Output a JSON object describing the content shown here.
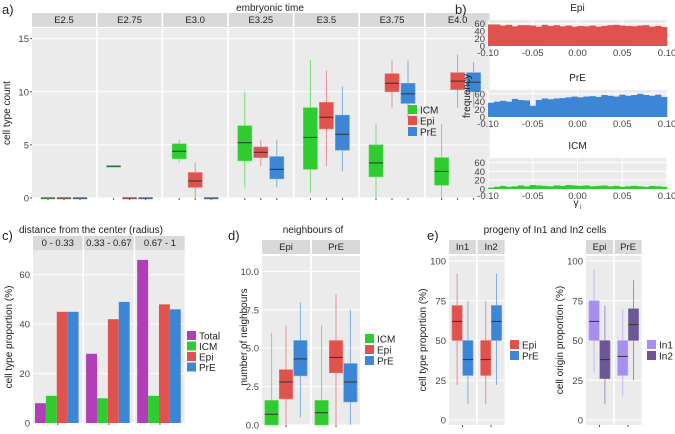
{
  "colors": {
    "icm": "#2ecc2e",
    "epi": "#e0524d",
    "pre": "#3d86d6",
    "total": "#b03eb6",
    "in1": "#a98ef2",
    "in2": "#6b5696",
    "panel": "#ebebeb",
    "strip": "#d9d9d9",
    "grid": "#ffffff"
  },
  "chart_data": [
    {
      "id": "a",
      "type": "boxplot",
      "panel_label": "a)",
      "title": "embryonic time",
      "ylabel": "cell type count",
      "ylim": [
        0,
        16
      ],
      "yticks": [
        0,
        5,
        10,
        15
      ],
      "facets": [
        "E2.5",
        "E2.75",
        "E3.0",
        "E3.25",
        "E3.5",
        "E3.75",
        "E4.0"
      ],
      "legend": [
        "ICM",
        "Epi",
        "PrE"
      ],
      "series": {
        "ICM": [
          [
            0,
            0,
            0,
            0,
            0
          ],
          [
            3,
            3,
            3,
            3,
            3
          ],
          [
            3.3,
            3.7,
            4.4,
            5.1,
            5.5
          ],
          [
            1,
            3.5,
            5.2,
            6.8,
            10
          ],
          [
            0.5,
            2.7,
            5.7,
            8.5,
            13
          ],
          [
            0,
            2,
            3.3,
            5,
            7
          ],
          [
            0,
            1.2,
            2.5,
            3.8,
            7
          ]
        ],
        "Epi": [
          [
            0,
            0,
            0,
            0,
            0
          ],
          [
            0,
            0,
            0,
            0,
            0
          ],
          [
            0,
            1,
            1.6,
            2.4,
            3.3
          ],
          [
            3,
            3.8,
            4.3,
            4.8,
            5.5
          ],
          [
            3,
            6.5,
            7.6,
            9,
            12
          ],
          [
            8.5,
            10,
            10.8,
            11.7,
            13
          ],
          [
            8.5,
            10.2,
            11,
            11.8,
            13.5
          ]
        ],
        "PrE": [
          [
            0,
            0,
            0,
            0,
            0
          ],
          [
            0,
            0,
            0,
            0,
            0
          ],
          [
            0,
            0,
            0,
            0,
            0
          ],
          [
            1,
            1.8,
            2.7,
            3.9,
            5.5
          ],
          [
            2.5,
            4.5,
            6,
            7.8,
            10.5
          ],
          [
            7.5,
            8.9,
            9.8,
            10.8,
            13
          ],
          [
            8.5,
            10,
            10.9,
            11.8,
            12.8
          ]
        ]
      }
    },
    {
      "id": "b",
      "type": "histogram",
      "panel_label": "b)",
      "ylabel": "frequency",
      "xlabel_base": "γ",
      "xlabel_sub": "i",
      "xlim": [
        -0.1,
        0.1
      ],
      "xticks": [
        "-0.10",
        "-0.05",
        "0.00",
        "0.05",
        "0.10"
      ],
      "panels": [
        {
          "title": "Epi",
          "ylim": [
            0,
            70
          ],
          "yticks": [
            0,
            20,
            40,
            60
          ],
          "values": [
            58,
            58,
            55,
            57,
            53,
            56,
            56,
            55,
            52,
            57,
            54,
            56,
            53,
            55,
            52,
            54,
            53,
            55,
            52,
            54,
            56,
            57,
            55,
            54,
            53,
            55,
            56,
            52,
            54,
            51
          ]
        },
        {
          "title": "PrE",
          "ylim": [
            0,
            70
          ],
          "yticks": [
            0,
            20,
            40,
            60
          ],
          "values": [
            37,
            40,
            42,
            40,
            47,
            44,
            43,
            29,
            44,
            48,
            46,
            48,
            49,
            51,
            53,
            51,
            53,
            54,
            52,
            57,
            55,
            53,
            58,
            55,
            57,
            60,
            57,
            55,
            58,
            52
          ]
        },
        {
          "title": "ICM",
          "ylim": [
            0,
            70
          ],
          "yticks": [
            0,
            20,
            40,
            60
          ],
          "values": [
            3,
            5,
            7,
            5,
            6,
            8,
            6,
            9,
            8,
            7,
            6,
            8,
            7,
            9,
            8,
            7,
            8,
            6,
            7,
            8,
            6,
            7,
            5,
            6,
            7,
            6,
            5,
            7,
            6,
            5
          ]
        }
      ]
    },
    {
      "id": "c",
      "type": "bar",
      "panel_label": "c)",
      "title": "distance from the center (radius)",
      "ylabel": "cell type proportion (%)",
      "ylim": [
        0,
        70
      ],
      "yticks": [
        0,
        20,
        40,
        60
      ],
      "facets": [
        "0 - 0.33",
        "0.33 - 0.67",
        "0.67 - 1"
      ],
      "legend": [
        "Total",
        "ICM",
        "Epi",
        "PrE"
      ],
      "series": {
        "Total": [
          8,
          28,
          66
        ],
        "ICM": [
          11,
          10,
          11
        ],
        "Epi": [
          45,
          42,
          48
        ],
        "PrE": [
          45,
          49,
          46
        ]
      }
    },
    {
      "id": "d",
      "type": "boxplot",
      "panel_label": "d)",
      "title": "neighbours of",
      "ylabel": "number of neighbours",
      "ylim": [
        0,
        11
      ],
      "yticks": [
        "0.0",
        "2.5",
        "5.0",
        "7.5",
        "10.0"
      ],
      "facets": [
        "Epi",
        "PrE"
      ],
      "legend": [
        "ICM",
        "Epi",
        "PrE"
      ],
      "series": {
        "ICM": [
          [
            0,
            0,
            0.7,
            1.6,
            6
          ],
          [
            0,
            0,
            0.8,
            1.6,
            6.5
          ]
        ],
        "Epi": [
          [
            0,
            1.7,
            2.8,
            3.6,
            6.5
          ],
          [
            0,
            3.4,
            4.4,
            5.5,
            8.5
          ]
        ],
        "PrE": [
          [
            0.5,
            3.2,
            4.3,
            5.5,
            8
          ],
          [
            0,
            1.5,
            2.8,
            4,
            7.5
          ]
        ]
      }
    },
    {
      "id": "e",
      "type": "boxplot",
      "panel_label": "e)",
      "title": "progeny of In1 and In2 cells",
      "subplots": [
        {
          "ylabel": "cell type proportion (%)",
          "facets": [
            "In1",
            "In2"
          ],
          "legend": [
            "Epi",
            "PrE"
          ],
          "ylim": [
            0,
            100
          ],
          "yticks": [
            0,
            25,
            50,
            75,
            100
          ],
          "series": {
            "Epi": [
              [
                22,
                50,
                62,
                72,
                92
              ],
              [
                10,
                28,
                38,
                50,
                75
              ]
            ],
            "PrE": [
              [
                10,
                28,
                38,
                50,
                75
              ],
              [
                22,
                50,
                62,
                72,
                92
              ]
            ]
          }
        },
        {
          "ylabel": "cell origin proportion (%)",
          "facets": [
            "Epi",
            "PrE"
          ],
          "legend": [
            "In1",
            "In2"
          ],
          "ylim": [
            0,
            100
          ],
          "yticks": [
            0,
            25,
            50,
            75,
            100
          ],
          "series": {
            "In1": [
              [
                30,
                50,
                62,
                75,
                95
              ],
              [
                15,
                28,
                40,
                50,
                70
              ]
            ],
            "In2": [
              [
                10,
                26,
                38,
                50,
                72
              ],
              [
                25,
                50,
                60,
                70,
                88
              ]
            ]
          }
        }
      ]
    }
  ]
}
